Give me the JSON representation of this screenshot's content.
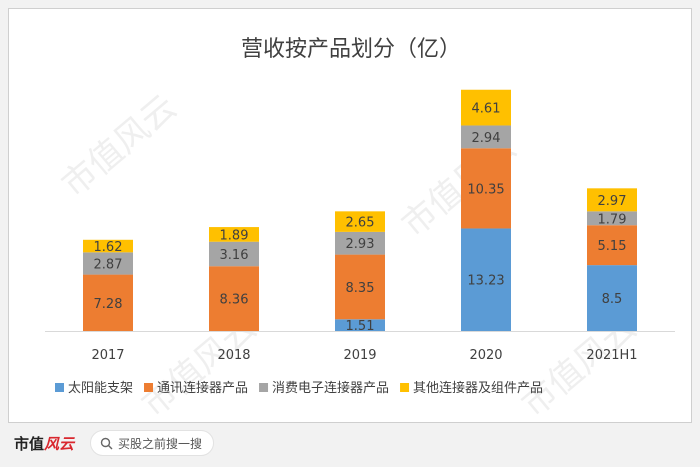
{
  "chart_data": {
    "type": "bar",
    "stacked": true,
    "title": "营收按产品划分（亿）",
    "categories": [
      "2017",
      "2018",
      "2019",
      "2020",
      "2021H1"
    ],
    "series": [
      {
        "name": "太阳能支架",
        "color": "#5b9bd5",
        "values": [
          null,
          null,
          1.51,
          13.23,
          8.5
        ],
        "labels": [
          "",
          "",
          "1.51",
          "13.23",
          "8.5"
        ]
      },
      {
        "name": "通讯连接器产品",
        "color": "#ed7d31",
        "values": [
          7.28,
          8.36,
          8.35,
          10.35,
          5.15
        ],
        "labels": [
          "7.28",
          "8.36",
          "8.35",
          "10.35",
          "5.15"
        ]
      },
      {
        "name": "消费电子连接器产品",
        "color": "#a5a5a5",
        "values": [
          2.87,
          3.16,
          2.93,
          2.94,
          1.79
        ],
        "labels": [
          "2.87",
          "3.16",
          "2.93",
          "2.94",
          "1.79"
        ]
      },
      {
        "name": "其他连接器及组件产品",
        "color": "#ffc000",
        "values": [
          1.62,
          1.89,
          2.65,
          4.61,
          2.97
        ],
        "labels": [
          "1.62",
          "1.89",
          "2.65",
          "4.61",
          "2.97"
        ]
      }
    ],
    "ylim": [
      0,
      32
    ],
    "grid": false,
    "legend": "bottom"
  },
  "watermark": "市值风云",
  "footer": {
    "brand_main": "市值",
    "brand_accent": "风云",
    "search_placeholder": "买股之前搜一搜"
  }
}
